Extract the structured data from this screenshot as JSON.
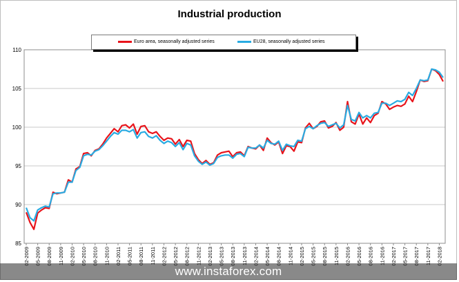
{
  "watermark": "www.instaforex.com",
  "chart_data": {
    "type": "line",
    "title": "Industrial production",
    "xlabel": "",
    "ylabel": "",
    "ylim": [
      85,
      110
    ],
    "yticks": [
      85,
      90,
      95,
      100,
      105,
      110
    ],
    "grid": true,
    "legend_placement": "top-center",
    "x_tick_labels": [
      "02-2009",
      "05-2009",
      "08-2009",
      "11-2009",
      "02-2010",
      "05-2010",
      "08-2010",
      "11-2010",
      "02-2011",
      "05-2011",
      "08-2011",
      "11-2011",
      "02-2012",
      "05-2012",
      "08-2012",
      "11-2012",
      "02-2013",
      "05-2013",
      "08-2013",
      "11-2013",
      "02-2014",
      "05-2014",
      "08-2014",
      "11-2014",
      "02-2015",
      "05-2015",
      "08-2015",
      "11-2015",
      "02-2016",
      "05-2016",
      "08-2016",
      "11-2016",
      "02-2017",
      "05-2017",
      "08-2017",
      "11-2017",
      "02-2018"
    ],
    "series": [
      {
        "name": "Euro area, seasonally adjusted series",
        "color": "#e8141b",
        "values": [
          89.0,
          87.7,
          86.8,
          88.9,
          89.3,
          89.6,
          89.5,
          91.6,
          91.4,
          91.5,
          91.6,
          93.2,
          92.9,
          94.6,
          94.9,
          96.6,
          96.7,
          96.3,
          97.0,
          97.2,
          97.8,
          98.6,
          99.2,
          99.8,
          99.4,
          100.2,
          100.3,
          99.9,
          100.4,
          99.1,
          100.1,
          100.2,
          99.4,
          99.2,
          99.4,
          98.8,
          98.3,
          98.6,
          98.5,
          97.8,
          98.4,
          97.5,
          98.3,
          98.2,
          96.6,
          95.8,
          95.3,
          95.7,
          95.2,
          95.4,
          96.4,
          96.7,
          96.8,
          96.9,
          96.2,
          96.7,
          96.8,
          96.3,
          97.5,
          97.3,
          97.2,
          97.7,
          97.0,
          98.6,
          98.0,
          97.7,
          98.1,
          96.6,
          97.6,
          97.5,
          96.9,
          98.1,
          98.0,
          99.9,
          100.5,
          99.8,
          100.1,
          100.7,
          100.8,
          99.9,
          100.1,
          100.6,
          99.6,
          100.0,
          103.3,
          100.7,
          100.4,
          101.7,
          100.4,
          101.2,
          100.6,
          101.5,
          101.8,
          103.3,
          103.0,
          102.3,
          102.6,
          102.8,
          102.7,
          103.0,
          104.0,
          103.3,
          104.6,
          106.1,
          105.9,
          106.0,
          107.5,
          107.3,
          106.8,
          105.9
        ]
      },
      {
        "name": "EU28, seasonally adjusted series",
        "color": "#29abe2",
        "values": [
          89.6,
          88.3,
          87.9,
          89.3,
          89.6,
          89.8,
          89.7,
          91.4,
          91.5,
          91.5,
          91.6,
          92.9,
          92.9,
          94.4,
          94.8,
          96.3,
          96.5,
          96.4,
          96.9,
          97.1,
          97.6,
          98.2,
          98.8,
          99.3,
          99.1,
          99.6,
          99.6,
          99.4,
          99.7,
          98.6,
          99.3,
          99.4,
          98.8,
          98.6,
          98.9,
          98.3,
          97.9,
          98.2,
          98.0,
          97.5,
          98.0,
          97.1,
          97.9,
          97.7,
          96.3,
          95.6,
          95.2,
          95.5,
          95.1,
          95.3,
          96.1,
          96.3,
          96.4,
          96.4,
          96.0,
          96.5,
          96.6,
          96.2,
          97.4,
          97.3,
          97.3,
          97.7,
          97.3,
          98.3,
          97.9,
          97.8,
          98.2,
          97.0,
          97.8,
          97.6,
          97.5,
          98.3,
          98.2,
          99.8,
          100.1,
          99.8,
          100.2,
          100.5,
          100.6,
          100.1,
          100.3,
          100.5,
          99.9,
          100.3,
          102.8,
          101.0,
          100.8,
          101.9,
          101.2,
          101.5,
          101.2,
          101.8,
          101.9,
          103.1,
          103.1,
          102.8,
          103.1,
          103.4,
          103.3,
          103.6,
          104.5,
          104.1,
          105.0,
          106.1,
          106.0,
          106.1,
          107.5,
          107.4,
          107.1,
          106.4
        ]
      }
    ]
  }
}
